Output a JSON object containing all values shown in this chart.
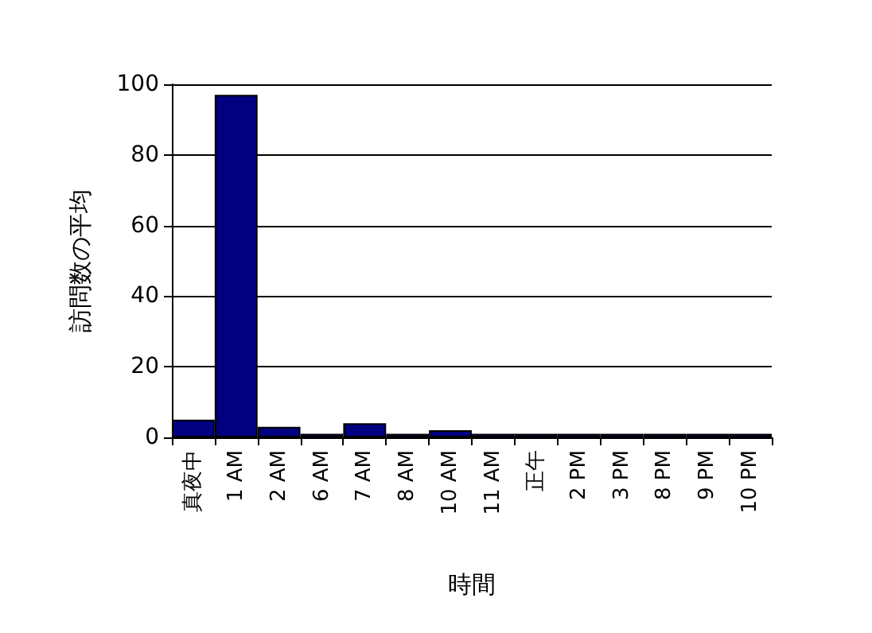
{
  "chart_data": {
    "type": "bar",
    "xlabel": "時間",
    "ylabel": "訪問数の平均",
    "categories": [
      "真夜中",
      "1 AM",
      "2 AM",
      "6 AM",
      "7 AM",
      "8 AM",
      "10 AM",
      "11 AM",
      "正午",
      "2 PM",
      "3 PM",
      "8 PM",
      "9 PM",
      "10 PM"
    ],
    "values": [
      5,
      97,
      3,
      1,
      4,
      1,
      2,
      1,
      1,
      1,
      1,
      1,
      1,
      1
    ],
    "color": "#000080",
    "ylim": [
      0,
      100
    ],
    "yticks": [
      0,
      20,
      40,
      60,
      80,
      100
    ],
    "grid": "y"
  }
}
